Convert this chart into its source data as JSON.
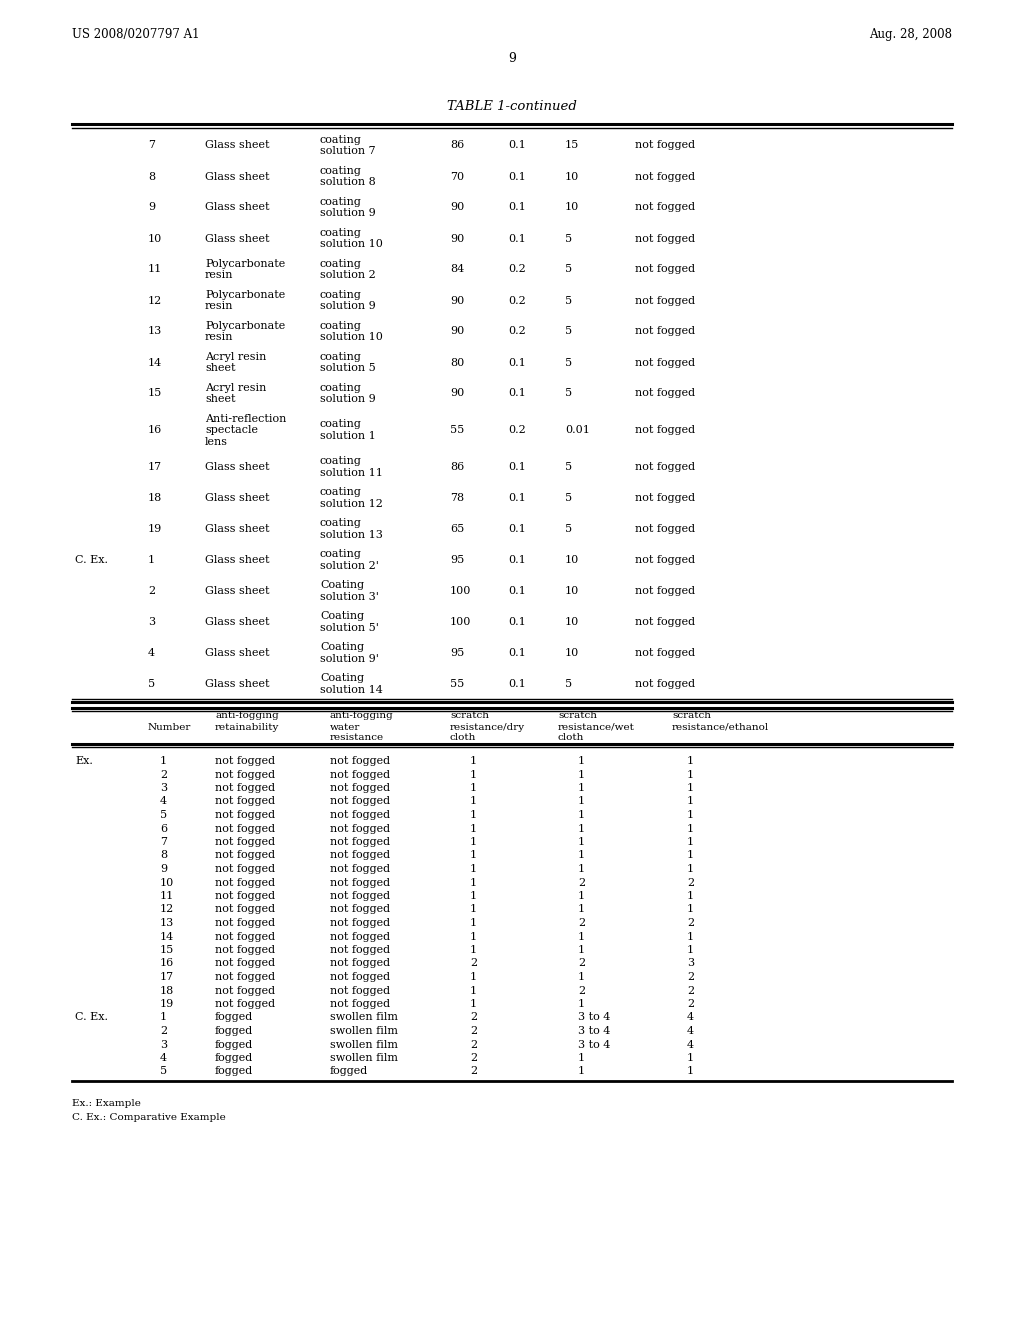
{
  "header_left": "US 2008/0207797 A1",
  "header_right": "Aug. 28, 2008",
  "page_number": "9",
  "table_title": "TABLE 1-continued",
  "bg_color": "#ffffff",
  "text_color": "#000000",
  "font_size": 8.0,
  "table1_rows": [
    [
      "",
      "7",
      "Glass sheet",
      "coating\nsolution 7",
      "86",
      "0.1",
      "15",
      "not fogged"
    ],
    [
      "",
      "8",
      "Glass sheet",
      "coating\nsolution 8",
      "70",
      "0.1",
      "10",
      "not fogged"
    ],
    [
      "",
      "9",
      "Glass sheet",
      "coating\nsolution 9",
      "90",
      "0.1",
      "10",
      "not fogged"
    ],
    [
      "",
      "10",
      "Glass sheet",
      "coating\nsolution 10",
      "90",
      "0.1",
      "5",
      "not fogged"
    ],
    [
      "",
      "11",
      "Polycarbonate\nresin",
      "coating\nsolution 2",
      "84",
      "0.2",
      "5",
      "not fogged"
    ],
    [
      "",
      "12",
      "Polycarbonate\nresin",
      "coating\nsolution 9",
      "90",
      "0.2",
      "5",
      "not fogged"
    ],
    [
      "",
      "13",
      "Polycarbonate\nresin",
      "coating\nsolution 10",
      "90",
      "0.2",
      "5",
      "not fogged"
    ],
    [
      "",
      "14",
      "Acryl resin\nsheet",
      "coating\nsolution 5",
      "80",
      "0.1",
      "5",
      "not fogged"
    ],
    [
      "",
      "15",
      "Acryl resin\nsheet",
      "coating\nsolution 9",
      "90",
      "0.1",
      "5",
      "not fogged"
    ],
    [
      "",
      "16",
      "Anti-reflection\nspectacle\nlens",
      "coating\nsolution 1",
      "55",
      "0.2",
      "0.01",
      "not fogged"
    ],
    [
      "",
      "17",
      "Glass sheet",
      "coating\nsolution 11",
      "86",
      "0.1",
      "5",
      "not fogged"
    ],
    [
      "",
      "18",
      "Glass sheet",
      "coating\nsolution 12",
      "78",
      "0.1",
      "5",
      "not fogged"
    ],
    [
      "",
      "19",
      "Glass sheet",
      "coating\nsolution 13",
      "65",
      "0.1",
      "5",
      "not fogged"
    ],
    [
      "C. Ex.",
      "1",
      "Glass sheet",
      "coating\nsolution 2'",
      "95",
      "0.1",
      "10",
      "not fogged"
    ],
    [
      "",
      "2",
      "Glass sheet",
      "Coating\nsolution 3'",
      "100",
      "0.1",
      "10",
      "not fogged"
    ],
    [
      "",
      "3",
      "Glass sheet",
      "Coating\nsolution 5'",
      "100",
      "0.1",
      "10",
      "not fogged"
    ],
    [
      "",
      "4",
      "Glass sheet",
      "Coating\nsolution 9'",
      "95",
      "0.1",
      "10",
      "not fogged"
    ],
    [
      "",
      "5",
      "Glass sheet",
      "Coating\nsolution 14",
      "55",
      "0.1",
      "5",
      "not fogged"
    ]
  ],
  "table2_rows": [
    [
      "Ex.",
      "1",
      "not fogged",
      "not fogged",
      "1",
      "1",
      "1"
    ],
    [
      "",
      "2",
      "not fogged",
      "not fogged",
      "1",
      "1",
      "1"
    ],
    [
      "",
      "3",
      "not fogged",
      "not fogged",
      "1",
      "1",
      "1"
    ],
    [
      "",
      "4",
      "not fogged",
      "not fogged",
      "1",
      "1",
      "1"
    ],
    [
      "",
      "5",
      "not fogged",
      "not fogged",
      "1",
      "1",
      "1"
    ],
    [
      "",
      "6",
      "not fogged",
      "not fogged",
      "1",
      "1",
      "1"
    ],
    [
      "",
      "7",
      "not fogged",
      "not fogged",
      "1",
      "1",
      "1"
    ],
    [
      "",
      "8",
      "not fogged",
      "not fogged",
      "1",
      "1",
      "1"
    ],
    [
      "",
      "9",
      "not fogged",
      "not fogged",
      "1",
      "1",
      "1"
    ],
    [
      "",
      "10",
      "not fogged",
      "not fogged",
      "1",
      "2",
      "2"
    ],
    [
      "",
      "11",
      "not fogged",
      "not fogged",
      "1",
      "1",
      "1"
    ],
    [
      "",
      "12",
      "not fogged",
      "not fogged",
      "1",
      "1",
      "1"
    ],
    [
      "",
      "13",
      "not fogged",
      "not fogged",
      "1",
      "2",
      "2"
    ],
    [
      "",
      "14",
      "not fogged",
      "not fogged",
      "1",
      "1",
      "1"
    ],
    [
      "",
      "15",
      "not fogged",
      "not fogged",
      "1",
      "1",
      "1"
    ],
    [
      "",
      "16",
      "not fogged",
      "not fogged",
      "2",
      "2",
      "3"
    ],
    [
      "",
      "17",
      "not fogged",
      "not fogged",
      "1",
      "1",
      "2"
    ],
    [
      "",
      "18",
      "not fogged",
      "not fogged",
      "1",
      "2",
      "2"
    ],
    [
      "",
      "19",
      "not fogged",
      "not fogged",
      "1",
      "1",
      "2"
    ],
    [
      "C. Ex.",
      "1",
      "fogged",
      "swollen film",
      "2",
      "3 to 4",
      "4"
    ],
    [
      "",
      "2",
      "fogged",
      "swollen film",
      "2",
      "3 to 4",
      "4"
    ],
    [
      "",
      "3",
      "fogged",
      "swollen film",
      "2",
      "3 to 4",
      "4"
    ],
    [
      "",
      "4",
      "fogged",
      "swollen film",
      "2",
      "1",
      "1"
    ],
    [
      "",
      "5",
      "fogged",
      "fogged",
      "2",
      "1",
      "1"
    ]
  ],
  "footnote1": "Ex.: Example",
  "footnote2": "C. Ex.: Comparative Example"
}
